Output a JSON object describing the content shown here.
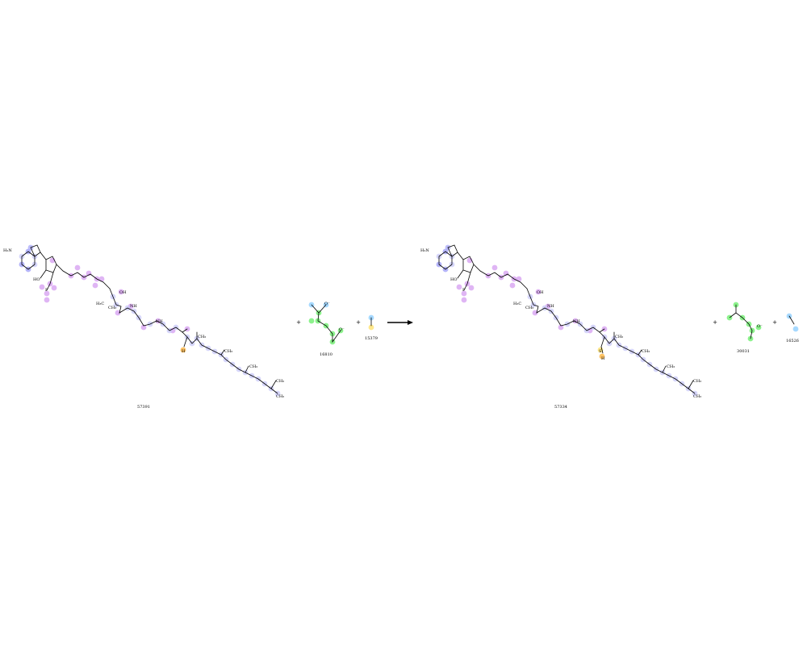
{
  "reactants": [
    {
      "id": "57391"
    },
    {
      "id": "16810"
    },
    {
      "id": "15379"
    }
  ],
  "products": [
    {
      "id": "57334"
    },
    {
      "id": "30031"
    },
    {
      "id": "16526"
    }
  ],
  "operators": {
    "plus": "+"
  },
  "atoms": {
    "H2N": "H₂N",
    "N": "N",
    "O": "O",
    "OMinus": "O⁻",
    "HO": "HO",
    "OH": "OH",
    "P": "P",
    "H3C": "H₃C",
    "CH3": "CH₃",
    "NH": "NH",
    "S": "S",
    "SH": "SH",
    "H": "H",
    "NPlus": "N⁺"
  },
  "colors": {
    "oxygen": "#d49cf0",
    "nitrogen": "#a8a8f8",
    "carbon_highlight": "#c8c8f8",
    "green": "#66ee66",
    "yellow": "#ffe066",
    "orange": "#ffb033",
    "cyan": "#88ccff",
    "bond": "#000000"
  }
}
